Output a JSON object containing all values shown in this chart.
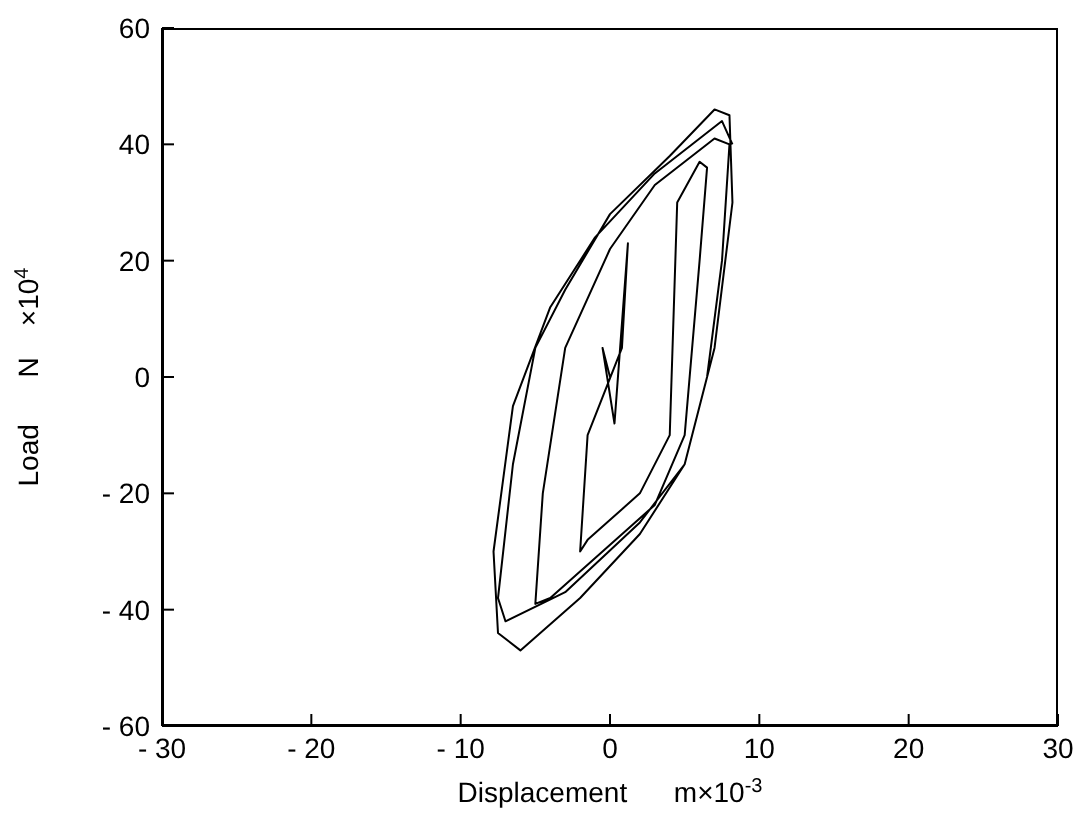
{
  "chart_data": {
    "type": "line",
    "xlabel": "Displacement      m×10$^{-3}$",
    "ylabel": "Load      N    ×10$^{4}$",
    "xlim": [
      -30,
      30
    ],
    "xticks": [
      {
        "value": -30,
        "label": "- 30"
      },
      {
        "value": -20,
        "label": "- 20"
      },
      {
        "value": -10,
        "label": "- 10"
      },
      0,
      10,
      20,
      30
    ],
    "ylim": [
      -60,
      60
    ],
    "yticks": [
      {
        "value": -60,
        "label": "- 60"
      },
      {
        "value": -40,
        "label": "- 40"
      },
      {
        "value": -20,
        "label": "- 20"
      },
      0,
      20,
      40,
      60
    ],
    "grid": false,
    "marker": "none",
    "line_style": "solid",
    "series": [
      {
        "color": "#000000",
        "x": [
          0,
          -0.5,
          0.3,
          1.2,
          0.8,
          -1.5,
          -2,
          -1.5,
          2,
          4,
          4.5,
          6,
          6.5,
          6,
          5,
          3,
          -4,
          -5,
          -4.5,
          -3,
          0,
          3,
          7,
          8,
          7.5,
          6.5,
          5,
          2,
          -3,
          -7,
          -7.5,
          -6.5,
          -5,
          -3,
          0,
          4,
          7,
          8,
          8.2,
          7,
          5,
          2,
          -2,
          -6,
          -7.5,
          -7.8,
          -6.5,
          -4,
          -1,
          3,
          7.5,
          8.2
        ],
        "values": [
          0,
          5,
          -8,
          23,
          5,
          -10,
          -30,
          -28,
          -20,
          -10,
          30,
          37,
          36,
          20,
          -10,
          -22,
          -38,
          -39,
          -20,
          5,
          22,
          33,
          41,
          40,
          20,
          0,
          -15,
          -25,
          -37,
          -42,
          -38,
          -15,
          5,
          15,
          28,
          38,
          46,
          45,
          30,
          5,
          -15,
          -27,
          -38,
          -47,
          -44,
          -30,
          -5,
          12,
          24,
          35,
          44,
          40
        ]
      }
    ]
  }
}
